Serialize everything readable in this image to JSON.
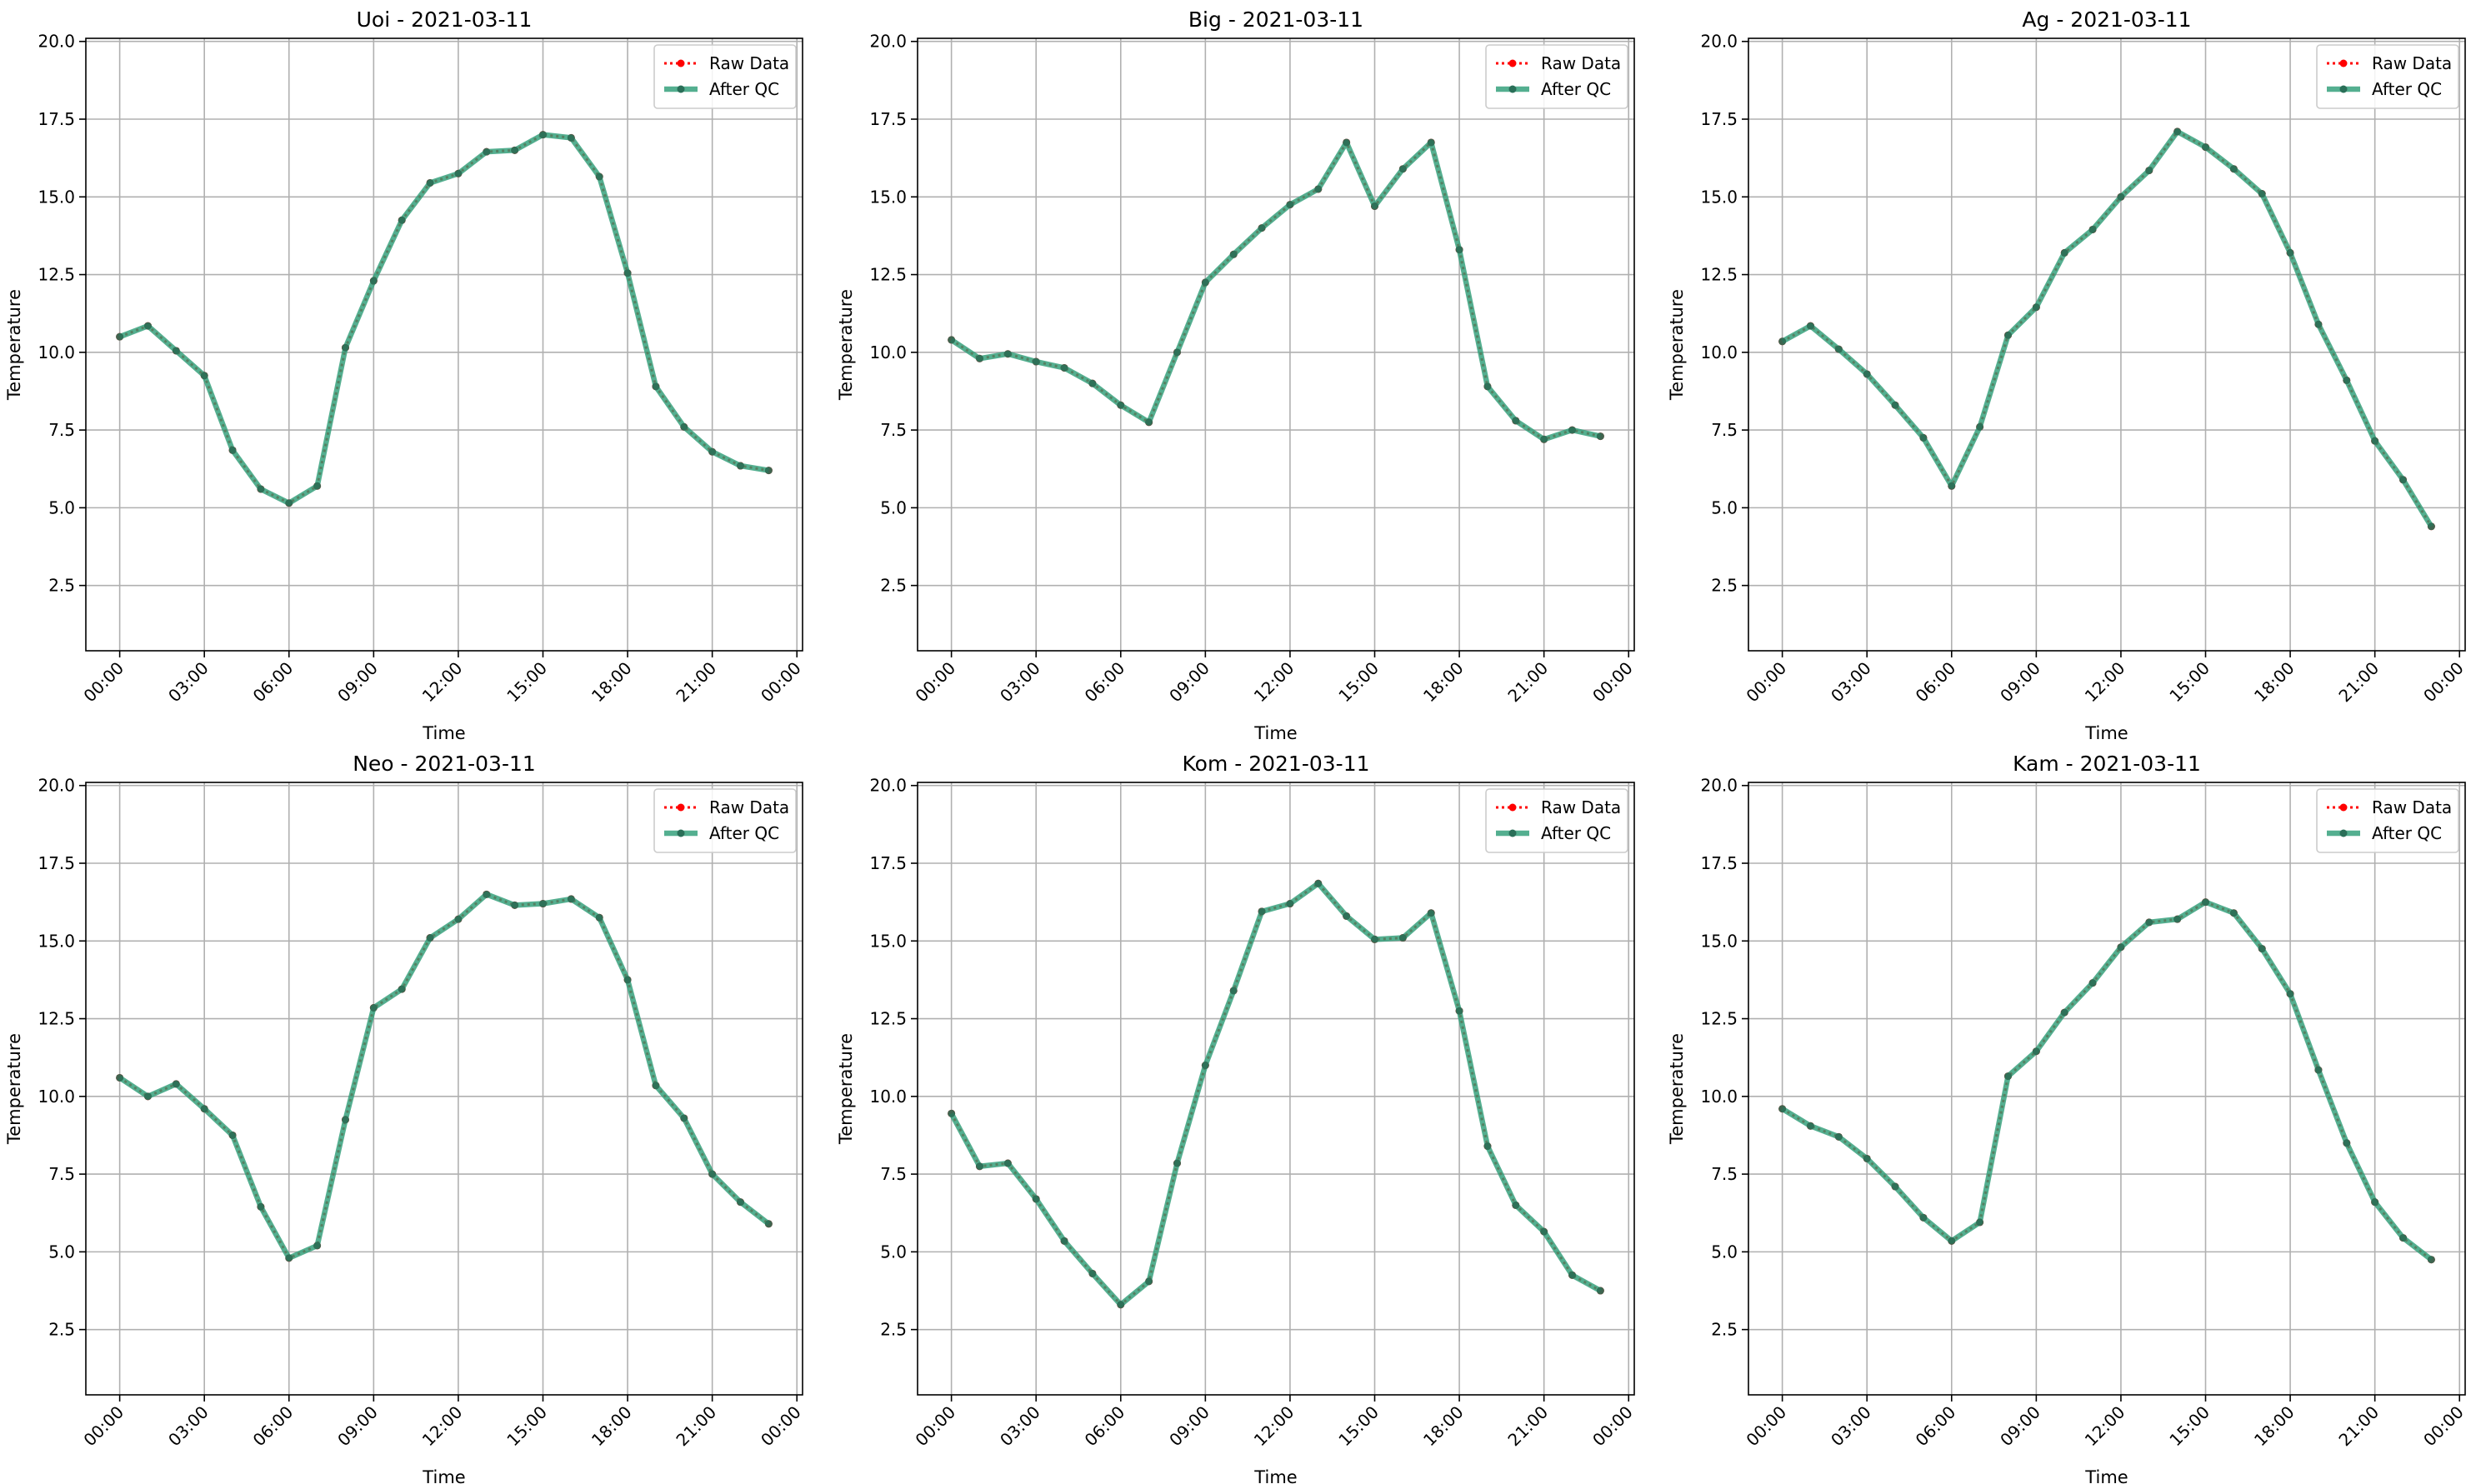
{
  "figure": {
    "legend_labels": {
      "raw": "Raw Data",
      "qc": "After QC"
    },
    "colors": {
      "raw": "#ff0000",
      "qc": "#2e9e78",
      "marker": "#2a6f58",
      "grid": "#b0b0b0"
    }
  },
  "chart_data": [
    {
      "type": "line",
      "title": "Uoi - 2021-03-11",
      "xlabel": "Time",
      "ylabel": "Temperature",
      "xlim_hours": [
        -1.2,
        24.2
      ],
      "ylim": [
        0.4,
        20.1
      ],
      "x_ticks": [
        "00:00",
        "03:00",
        "06:00",
        "09:00",
        "12:00",
        "15:00",
        "18:00",
        "21:00",
        "00:00"
      ],
      "y_ticks": [
        "2.5",
        "5.0",
        "7.5",
        "10.0",
        "12.5",
        "15.0",
        "17.5",
        "20.0"
      ],
      "legend_position": "top-right",
      "grid": true,
      "x": [
        "00:00",
        "01:00",
        "02:00",
        "03:00",
        "04:00",
        "05:00",
        "06:00",
        "07:00",
        "08:00",
        "09:00",
        "10:00",
        "11:00",
        "12:00",
        "13:00",
        "14:00",
        "15:00",
        "16:00",
        "17:00",
        "18:00",
        "19:00",
        "20:00",
        "21:00",
        "22:00",
        "23:00"
      ],
      "series": [
        {
          "name": "Raw Data",
          "values": [
            10.5,
            10.85,
            10.05,
            9.25,
            6.85,
            5.6,
            5.15,
            5.7,
            10.15,
            12.3,
            14.25,
            15.45,
            15.75,
            16.45,
            16.5,
            17.0,
            16.9,
            15.65,
            12.55,
            8.9,
            7.6,
            6.8,
            6.35,
            6.2
          ]
        },
        {
          "name": "After QC",
          "values": [
            10.5,
            10.85,
            10.05,
            9.25,
            6.85,
            5.6,
            5.15,
            5.7,
            10.15,
            12.3,
            14.25,
            15.45,
            15.75,
            16.45,
            16.5,
            17.0,
            16.9,
            15.65,
            12.55,
            8.9,
            7.6,
            6.8,
            6.35,
            6.2
          ]
        }
      ]
    },
    {
      "type": "line",
      "title": "Big - 2021-03-11",
      "xlabel": "Time",
      "ylabel": "Temperature",
      "xlim_hours": [
        -1.2,
        24.2
      ],
      "ylim": [
        0.4,
        20.1
      ],
      "x_ticks": [
        "00:00",
        "03:00",
        "06:00",
        "09:00",
        "12:00",
        "15:00",
        "18:00",
        "21:00",
        "00:00"
      ],
      "y_ticks": [
        "2.5",
        "5.0",
        "7.5",
        "10.0",
        "12.5",
        "15.0",
        "17.5",
        "20.0"
      ],
      "legend_position": "top-right",
      "grid": true,
      "x": [
        "00:00",
        "01:00",
        "02:00",
        "03:00",
        "04:00",
        "05:00",
        "06:00",
        "07:00",
        "08:00",
        "09:00",
        "10:00",
        "11:00",
        "12:00",
        "13:00",
        "14:00",
        "15:00",
        "16:00",
        "17:00",
        "18:00",
        "19:00",
        "20:00",
        "21:00",
        "22:00",
        "23:00"
      ],
      "series": [
        {
          "name": "Raw Data",
          "values": [
            10.4,
            9.8,
            9.95,
            9.7,
            9.5,
            9.0,
            8.3,
            7.75,
            10.0,
            12.25,
            13.15,
            14.0,
            14.75,
            15.25,
            16.75,
            14.7,
            15.9,
            16.75,
            13.3,
            8.9,
            7.8,
            7.2,
            7.5,
            7.3
          ]
        },
        {
          "name": "After QC",
          "values": [
            10.4,
            9.8,
            9.95,
            9.7,
            9.5,
            9.0,
            8.3,
            7.75,
            10.0,
            12.25,
            13.15,
            14.0,
            14.75,
            15.25,
            16.75,
            14.7,
            15.9,
            16.75,
            13.3,
            8.9,
            7.8,
            7.2,
            7.5,
            7.3
          ]
        }
      ]
    },
    {
      "type": "line",
      "title": "Ag - 2021-03-11",
      "xlabel": "Time",
      "ylabel": "Temperature",
      "xlim_hours": [
        -1.2,
        24.2
      ],
      "ylim": [
        0.4,
        20.1
      ],
      "x_ticks": [
        "00:00",
        "03:00",
        "06:00",
        "09:00",
        "12:00",
        "15:00",
        "18:00",
        "21:00",
        "00:00"
      ],
      "y_ticks": [
        "2.5",
        "5.0",
        "7.5",
        "10.0",
        "12.5",
        "15.0",
        "17.5",
        "20.0"
      ],
      "legend_position": "top-right",
      "grid": true,
      "x": [
        "00:00",
        "01:00",
        "02:00",
        "03:00",
        "04:00",
        "05:00",
        "06:00",
        "07:00",
        "08:00",
        "09:00",
        "10:00",
        "11:00",
        "12:00",
        "13:00",
        "14:00",
        "15:00",
        "16:00",
        "17:00",
        "18:00",
        "19:00",
        "20:00",
        "21:00",
        "22:00",
        "23:00"
      ],
      "series": [
        {
          "name": "Raw Data",
          "values": [
            10.35,
            10.85,
            10.1,
            9.3,
            8.3,
            7.25,
            5.7,
            7.6,
            10.55,
            11.45,
            13.2,
            13.95,
            15.0,
            15.85,
            17.1,
            16.6,
            15.9,
            15.1,
            13.2,
            10.9,
            9.1,
            7.15,
            5.9,
            4.4
          ]
        },
        {
          "name": "After QC",
          "values": [
            10.35,
            10.85,
            10.1,
            9.3,
            8.3,
            7.25,
            5.7,
            7.6,
            10.55,
            11.45,
            13.2,
            13.95,
            15.0,
            15.85,
            17.1,
            16.6,
            15.9,
            15.1,
            13.2,
            10.9,
            9.1,
            7.15,
            5.9,
            4.4
          ]
        }
      ]
    },
    {
      "type": "line",
      "title": "Neo - 2021-03-11",
      "xlabel": "Time",
      "ylabel": "Temperature",
      "xlim_hours": [
        -1.2,
        24.2
      ],
      "ylim": [
        0.4,
        20.1
      ],
      "x_ticks": [
        "00:00",
        "03:00",
        "06:00",
        "09:00",
        "12:00",
        "15:00",
        "18:00",
        "21:00",
        "00:00"
      ],
      "y_ticks": [
        "2.5",
        "5.0",
        "7.5",
        "10.0",
        "12.5",
        "15.0",
        "17.5",
        "20.0"
      ],
      "legend_position": "top-right",
      "grid": true,
      "x": [
        "00:00",
        "01:00",
        "02:00",
        "03:00",
        "04:00",
        "05:00",
        "06:00",
        "07:00",
        "08:00",
        "09:00",
        "10:00",
        "11:00",
        "12:00",
        "13:00",
        "14:00",
        "15:00",
        "16:00",
        "17:00",
        "18:00",
        "19:00",
        "20:00",
        "21:00",
        "22:00",
        "23:00"
      ],
      "series": [
        {
          "name": "Raw Data",
          "values": [
            10.6,
            10.0,
            10.4,
            9.6,
            8.75,
            6.45,
            4.8,
            5.2,
            9.25,
            12.85,
            13.45,
            15.1,
            15.7,
            16.5,
            16.15,
            16.2,
            16.35,
            15.75,
            13.75,
            10.35,
            9.3,
            7.5,
            6.6,
            5.9
          ]
        },
        {
          "name": "After QC",
          "values": [
            10.6,
            10.0,
            10.4,
            9.6,
            8.75,
            6.45,
            4.8,
            5.2,
            9.25,
            12.85,
            13.45,
            15.1,
            15.7,
            16.5,
            16.15,
            16.2,
            16.35,
            15.75,
            13.75,
            10.35,
            9.3,
            7.5,
            6.6,
            5.9
          ]
        }
      ]
    },
    {
      "type": "line",
      "title": "Kom - 2021-03-11",
      "xlabel": "Time",
      "ylabel": "Temperature",
      "xlim_hours": [
        -1.2,
        24.2
      ],
      "ylim": [
        0.4,
        20.1
      ],
      "x_ticks": [
        "00:00",
        "03:00",
        "06:00",
        "09:00",
        "12:00",
        "15:00",
        "18:00",
        "21:00",
        "00:00"
      ],
      "y_ticks": [
        "2.5",
        "5.0",
        "7.5",
        "10.0",
        "12.5",
        "15.0",
        "17.5",
        "20.0"
      ],
      "legend_position": "top-right",
      "grid": true,
      "x": [
        "00:00",
        "01:00",
        "02:00",
        "03:00",
        "04:00",
        "05:00",
        "06:00",
        "07:00",
        "08:00",
        "09:00",
        "10:00",
        "11:00",
        "12:00",
        "13:00",
        "14:00",
        "15:00",
        "16:00",
        "17:00",
        "18:00",
        "19:00",
        "20:00",
        "21:00",
        "22:00",
        "23:00"
      ],
      "series": [
        {
          "name": "Raw Data",
          "values": [
            9.45,
            7.75,
            7.85,
            6.7,
            5.35,
            4.3,
            3.3,
            4.05,
            7.85,
            11.0,
            13.4,
            15.95,
            16.2,
            16.85,
            15.8,
            15.05,
            15.1,
            15.9,
            12.75,
            8.4,
            6.5,
            5.65,
            4.25,
            3.75
          ]
        },
        {
          "name": "After QC",
          "values": [
            9.45,
            7.75,
            7.85,
            6.7,
            5.35,
            4.3,
            3.3,
            4.05,
            7.85,
            11.0,
            13.4,
            15.95,
            16.2,
            16.85,
            15.8,
            15.05,
            15.1,
            15.9,
            12.75,
            8.4,
            6.5,
            5.65,
            4.25,
            3.75
          ]
        }
      ]
    },
    {
      "type": "line",
      "title": "Kam - 2021-03-11",
      "xlabel": "Time",
      "ylabel": "Temperature",
      "xlim_hours": [
        -1.2,
        24.2
      ],
      "ylim": [
        0.4,
        20.1
      ],
      "x_ticks": [
        "00:00",
        "03:00",
        "06:00",
        "09:00",
        "12:00",
        "15:00",
        "18:00",
        "21:00",
        "00:00"
      ],
      "y_ticks": [
        "2.5",
        "5.0",
        "7.5",
        "10.0",
        "12.5",
        "15.0",
        "17.5",
        "20.0"
      ],
      "legend_position": "top-right",
      "grid": true,
      "x": [
        "00:00",
        "01:00",
        "02:00",
        "03:00",
        "04:00",
        "05:00",
        "06:00",
        "07:00",
        "08:00",
        "09:00",
        "10:00",
        "11:00",
        "12:00",
        "13:00",
        "14:00",
        "15:00",
        "16:00",
        "17:00",
        "18:00",
        "19:00",
        "20:00",
        "21:00",
        "22:00",
        "23:00"
      ],
      "series": [
        {
          "name": "Raw Data",
          "values": [
            9.6,
            9.05,
            8.7,
            8.0,
            7.1,
            6.1,
            5.35,
            5.95,
            10.65,
            11.45,
            12.7,
            13.65,
            14.8,
            15.6,
            15.7,
            16.25,
            15.9,
            14.75,
            13.3,
            10.85,
            8.5,
            6.6,
            5.45,
            4.75
          ]
        },
        {
          "name": "After QC",
          "values": [
            9.6,
            9.05,
            8.7,
            8.0,
            7.1,
            6.1,
            5.35,
            5.95,
            10.65,
            11.45,
            12.7,
            13.65,
            14.8,
            15.6,
            15.7,
            16.25,
            15.9,
            14.75,
            13.3,
            10.85,
            8.5,
            6.6,
            5.45,
            4.75
          ]
        }
      ]
    }
  ]
}
